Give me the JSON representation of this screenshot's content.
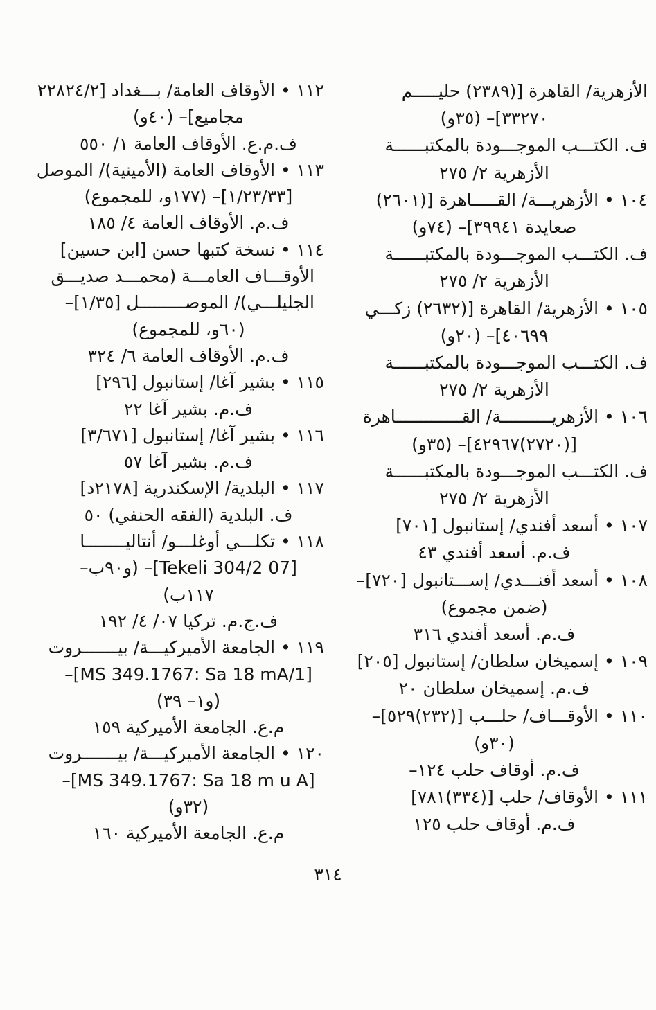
{
  "page": {
    "page_number": "٣١٤",
    "columns": {
      "right": {
        "lines": [
          {
            "text": "الأزهرية/ القاهرة [(٢٣٨٩) حليـــــم",
            "align": "start"
          },
          {
            "text": "٣٣٢٧٠]– (٣٥و)",
            "align": "center"
          },
          {
            "text": "ف. الكتـــب الموجـــودة بالمكتبــــــة",
            "align": "start"
          },
          {
            "text": "الأزهرية ٢/ ٢٧٥",
            "align": "center"
          },
          {
            "text": "١٠٤ • الأزهريـــة/ القـــــاهرة [(٢٦٠١)",
            "align": "start"
          },
          {
            "text": "صعايدة ٣٩٩٤١]– (٧٤و)",
            "align": "center"
          },
          {
            "text": "ف. الكتـــب الموجـــودة بالمكتبــــــة",
            "align": "start"
          },
          {
            "text": "الأزهرية ٢/ ٢٧٥",
            "align": "center"
          },
          {
            "text": "١٠٥ • الأزهرية/ القاهرة [(٢٦٣٢) زكـــي",
            "align": "start"
          },
          {
            "text": "٤٠٦٩٩]– (٢٠و)",
            "align": "center"
          },
          {
            "text": "ف. الكتـــب الموجـــودة بالمكتبــــــة",
            "align": "start"
          },
          {
            "text": "الأزهرية ٢/ ٢٧٥",
            "align": "center"
          },
          {
            "text": "١٠٦ • الأزهريــــــــــة/ القـــــــــــــاهرة",
            "align": "start"
          },
          {
            "text": "[(٢٧٢٠)٤٢٩٦٧]– (٣٥و)",
            "align": "center"
          },
          {
            "text": "ف. الكتـــب الموجـــودة بالمكتبــــــة",
            "align": "start"
          },
          {
            "text": "الأزهرية ٢/ ٢٧٥",
            "align": "center"
          },
          {
            "text": "١٠٧ • أسعد أفندي/ إستانبول [٧٠١]",
            "align": "start"
          },
          {
            "text": "ف.م. أسعد أفندي ٤٣",
            "align": "center"
          },
          {
            "text": "١٠٨ • أسعد أفنـــدي/ إســـتانبول [٧٢٠]–",
            "align": "start"
          },
          {
            "text": "(ضمن مجموع)",
            "align": "center"
          },
          {
            "text": "ف.م. أسعد أفندي ٣١٦",
            "align": "center"
          },
          {
            "text": "١٠٩ • إسميخان سلطان/ إستانبول [٢٠٥]",
            "align": "start"
          },
          {
            "text": "ف.م. إسميخان سلطان ٢٠",
            "align": "center"
          },
          {
            "text": "١١٠ • الأوقـــاف/ حلـــب [(٢٣٢)٥٢٩]–",
            "align": "start"
          },
          {
            "text": "(٣٠و)",
            "align": "center"
          },
          {
            "text": "ف.م. أوقاف حلب ١٢٤–",
            "align": "center"
          },
          {
            "text": "١١١ • الأوقاف/ حلب [(٣٣٤)٧٨١]",
            "align": "start"
          },
          {
            "text": "ف.م. أوقاف حلب ١٢٥",
            "align": "center"
          }
        ]
      },
      "left": {
        "lines": [
          {
            "text": "١١٢ • الأوقاف العامة/ بـــغداد [٢٢٨٢٤/٢",
            "align": "start"
          },
          {
            "text": "مجاميع]– (٤٠و)",
            "align": "center"
          },
          {
            "text": "ف.م.ع. الأوقاف العامة ١/ ٥٥٠",
            "align": "center"
          },
          {
            "text": "١١٣ • الأوقاف العامة (الأمينية)/ الموصل",
            "align": "start"
          },
          {
            "text": "[١/٢٣/٣٣]– (١٧٧و، للمجموع)",
            "align": "center"
          },
          {
            "text": "ف.م. الأوقاف العامة ٤/ ١٨٥",
            "align": "center"
          },
          {
            "text": "١١٤ • نسخة كتبها حسن [ابن حسين]",
            "align": "start"
          },
          {
            "text": "الأوقـــاف العامـــة (محمـــد صديـــق",
            "align": "cont"
          },
          {
            "text": "الجليلـــي)/ الموصـــــــــل [١/٣٥]–",
            "align": "cont"
          },
          {
            "text": "(٦٠و، للمجموع)",
            "align": "center"
          },
          {
            "text": "ف.م. الأوقاف العامة ٦/ ٣٢٤",
            "align": "center"
          },
          {
            "text": "١١٥ • بشير آغا/ إستانبول [٢٩٦]",
            "align": "start"
          },
          {
            "text": "ف.م. بشير آغا ٢٢",
            "align": "center"
          },
          {
            "text": "١١٦ • بشير آغا/ إستانبول [٣/٦٧١]",
            "align": "start"
          },
          {
            "text": "ف.م. بشير آغا ٥٧",
            "align": "center"
          },
          {
            "text": "١١٧ • البلدية/ الإسكندرية [٢١٧٨د]",
            "align": "start"
          },
          {
            "text": "ف. البلدية (الفقه الحنفي) ٥٠",
            "align": "center"
          },
          {
            "text": "١١٨ • تكلـــي أوغلـــو/ أنتاليــــــــا",
            "align": "start"
          },
          {
            "text": "[07 Tekeli 304/2]– (و٩٠ب–",
            "align": "center"
          },
          {
            "text": "١١٧ب)",
            "align": "center"
          },
          {
            "text": "ف.ج.م. تركيا ٠٧/ ٤/ ١٩٢",
            "align": "center"
          },
          {
            "text": "١١٩ • الجامعة الأميركيـــة/ بيـــــــروت",
            "align": "start"
          },
          {
            "text": "[MS 349.1767: Sa 18 mA/1]–",
            "align": "center"
          },
          {
            "text": "(و١– ٣٩)",
            "align": "center"
          },
          {
            "text": "م.ع. الجامعة الأميركية ١٥٩",
            "align": "center"
          },
          {
            "text": "١٢٠ • الجامعة الأميركيـــة/ بيـــــــروت",
            "align": "start"
          },
          {
            "text": "[MS 349.1767: Sa 18 m u A]–",
            "align": "center"
          },
          {
            "text": "(٣٢و)",
            "align": "center"
          },
          {
            "text": "م.ع. الجامعة الأميركية ١٦٠",
            "align": "center"
          }
        ]
      }
    }
  }
}
